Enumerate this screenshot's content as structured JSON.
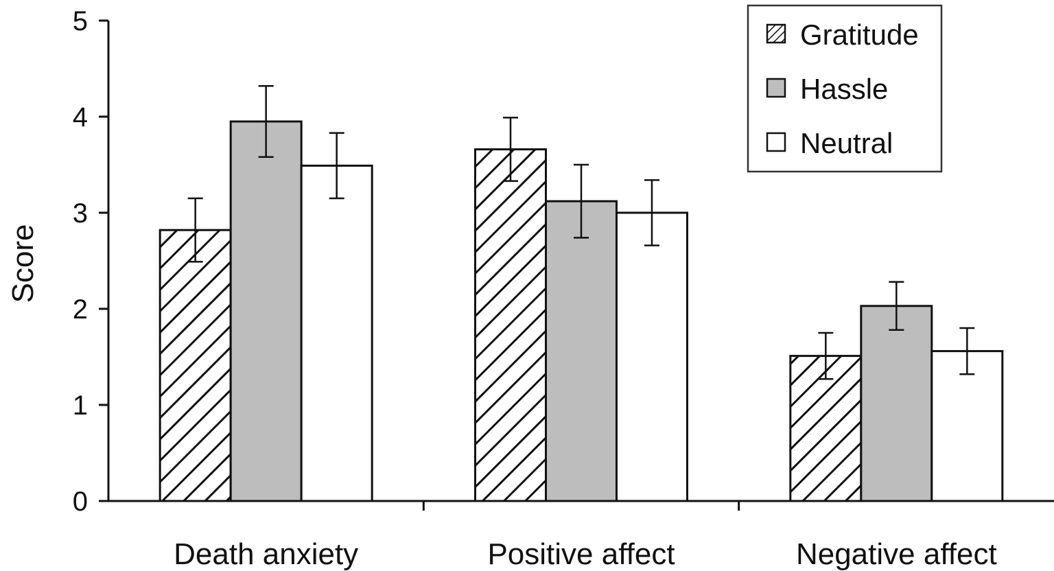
{
  "chart_data": {
    "type": "bar",
    "title": "",
    "xlabel": "",
    "ylabel": "Score",
    "ylim": [
      0,
      5
    ],
    "yticks": [
      0,
      1,
      2,
      3,
      4,
      5
    ],
    "grid": false,
    "legend_position": "top-right",
    "categories": [
      "Death anxiety",
      "Positive affect",
      "Negative affect"
    ],
    "series": [
      {
        "name": "Gratitude",
        "style": "hatched",
        "color": "#ffffff",
        "values": [
          2.82,
          3.66,
          1.51
        ],
        "error": [
          0.33,
          0.33,
          0.24
        ]
      },
      {
        "name": "Hassle",
        "style": "solid",
        "color": "#bdbdbd",
        "values": [
          3.95,
          3.12,
          2.03
        ],
        "error": [
          0.37,
          0.38,
          0.25
        ]
      },
      {
        "name": "Neutral",
        "style": "solid",
        "color": "#ffffff",
        "values": [
          3.49,
          3.0,
          1.56
        ],
        "error": [
          0.34,
          0.34,
          0.24
        ]
      }
    ]
  }
}
